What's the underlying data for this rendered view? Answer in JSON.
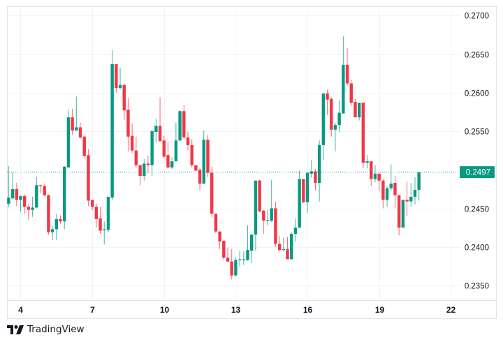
{
  "brand": {
    "name": "TradingView"
  },
  "colors": {
    "up": "#089981",
    "down": "#F23645",
    "grid": "#F0F3FA",
    "text": "#131722"
  },
  "chart_data": {
    "type": "candlestick",
    "title": "",
    "xlabel": "",
    "ylabel": "",
    "x_unit": "day of month",
    "x_start": 3.5,
    "x_step": 0.16667,
    "xlim": [
      3.43,
      22.43
    ],
    "ylim": [
      0.2331,
      0.2712
    ],
    "grid": true,
    "x_ticks": [
      4,
      7,
      10,
      13,
      16,
      19,
      22
    ],
    "x_tick_labels": [
      "4",
      "7",
      "10",
      "13",
      "16",
      "19",
      "22"
    ],
    "y_ticks": [
      0.27,
      0.265,
      0.26,
      0.255,
      0.245,
      0.24,
      0.235
    ],
    "y_tick_labels": [
      "0.2700",
      "0.2650",
      "0.2600",
      "0.2550",
      "0.2450",
      "0.2400",
      "0.2350"
    ],
    "last_price": 0.2497,
    "last_price_label": "0.2497",
    "ohlc_fields": [
      "open",
      "high",
      "low",
      "close"
    ],
    "candles": [
      [
        0.2456,
        0.2505,
        0.2452,
        0.2464
      ],
      [
        0.2463,
        0.2497,
        0.2461,
        0.2475
      ],
      [
        0.2475,
        0.2483,
        0.2453,
        0.2461
      ],
      [
        0.2461,
        0.2466,
        0.2446,
        0.2466
      ],
      [
        0.2466,
        0.2468,
        0.2443,
        0.2452
      ],
      [
        0.2452,
        0.2456,
        0.2435,
        0.2448
      ],
      [
        0.2448,
        0.2465,
        0.2439,
        0.2451
      ],
      [
        0.2451,
        0.2491,
        0.245,
        0.248
      ],
      [
        0.248,
        0.2481,
        0.247,
        0.2479
      ],
      [
        0.2479,
        0.2481,
        0.2466,
        0.2467
      ],
      [
        0.2467,
        0.2468,
        0.2416,
        0.2419
      ],
      [
        0.2419,
        0.2427,
        0.2409,
        0.2423
      ],
      [
        0.2423,
        0.2443,
        0.2409,
        0.2436
      ],
      [
        0.2436,
        0.2441,
        0.243,
        0.2433
      ],
      [
        0.2433,
        0.2505,
        0.2423,
        0.2504
      ],
      [
        0.2503,
        0.2578,
        0.2503,
        0.2568
      ],
      [
        0.2568,
        0.2579,
        0.2545,
        0.2551
      ],
      [
        0.2551,
        0.2595,
        0.2551,
        0.2555
      ],
      [
        0.2555,
        0.2561,
        0.254,
        0.2542
      ],
      [
        0.2543,
        0.2544,
        0.2515,
        0.2518
      ],
      [
        0.2519,
        0.2527,
        0.2453,
        0.246
      ],
      [
        0.2461,
        0.2461,
        0.2448,
        0.2452
      ],
      [
        0.2452,
        0.2456,
        0.2425,
        0.2436
      ],
      [
        0.2437,
        0.2452,
        0.2417,
        0.2421
      ],
      [
        0.2422,
        0.2433,
        0.2403,
        0.2423
      ],
      [
        0.2422,
        0.2465,
        0.2419,
        0.2465
      ],
      [
        0.2464,
        0.2655,
        0.2461,
        0.2637
      ],
      [
        0.2637,
        0.2637,
        0.26,
        0.2606
      ],
      [
        0.2606,
        0.2632,
        0.2604,
        0.261
      ],
      [
        0.261,
        0.2612,
        0.2565,
        0.2577
      ],
      [
        0.2578,
        0.2593,
        0.2524,
        0.2543
      ],
      [
        0.2544,
        0.256,
        0.2522,
        0.2525
      ],
      [
        0.2525,
        0.2543,
        0.2503,
        0.2506
      ],
      [
        0.2506,
        0.2506,
        0.248,
        0.2492
      ],
      [
        0.2492,
        0.2514,
        0.2486,
        0.2508
      ],
      [
        0.2508,
        0.2518,
        0.2496,
        0.2506
      ],
      [
        0.2506,
        0.2552,
        0.2492,
        0.255
      ],
      [
        0.2549,
        0.2566,
        0.2535,
        0.2557
      ],
      [
        0.2557,
        0.2594,
        0.2537,
        0.2537
      ],
      [
        0.2538,
        0.2544,
        0.2515,
        0.2517
      ],
      [
        0.2519,
        0.2537,
        0.2502,
        0.2503
      ],
      [
        0.2503,
        0.2516,
        0.2501,
        0.2511
      ],
      [
        0.2511,
        0.2561,
        0.2511,
        0.2538
      ],
      [
        0.2538,
        0.2577,
        0.2537,
        0.2576
      ],
      [
        0.2576,
        0.2584,
        0.254,
        0.2542
      ],
      [
        0.2542,
        0.2549,
        0.2525,
        0.2532
      ],
      [
        0.2532,
        0.254,
        0.2503,
        0.2506
      ],
      [
        0.2506,
        0.2506,
        0.2497,
        0.2499
      ],
      [
        0.25,
        0.2503,
        0.2473,
        0.2482
      ],
      [
        0.2482,
        0.2551,
        0.2482,
        0.2539
      ],
      [
        0.2539,
        0.2545,
        0.2491,
        0.2496
      ],
      [
        0.2496,
        0.2504,
        0.2438,
        0.2443
      ],
      [
        0.2443,
        0.2443,
        0.2418,
        0.242
      ],
      [
        0.242,
        0.242,
        0.2397,
        0.2407
      ],
      [
        0.2408,
        0.2408,
        0.2383,
        0.2386
      ],
      [
        0.2386,
        0.2399,
        0.238,
        0.2381
      ],
      [
        0.2381,
        0.2397,
        0.2358,
        0.2363
      ],
      [
        0.2363,
        0.2386,
        0.2362,
        0.2383
      ],
      [
        0.2383,
        0.2395,
        0.2375,
        0.2384
      ],
      [
        0.2383,
        0.2394,
        0.2377,
        0.2384
      ],
      [
        0.2383,
        0.2428,
        0.2382,
        0.2396
      ],
      [
        0.2395,
        0.2416,
        0.2379,
        0.2416
      ],
      [
        0.2416,
        0.2486,
        0.2395,
        0.2486
      ],
      [
        0.2486,
        0.2487,
        0.2445,
        0.2446
      ],
      [
        0.2447,
        0.2448,
        0.2417,
        0.2434
      ],
      [
        0.2434,
        0.2448,
        0.2428,
        0.2435
      ],
      [
        0.2434,
        0.2487,
        0.2432,
        0.245
      ],
      [
        0.245,
        0.2459,
        0.24,
        0.2404
      ],
      [
        0.2404,
        0.2414,
        0.2394,
        0.2396
      ],
      [
        0.2396,
        0.2412,
        0.2394,
        0.2397
      ],
      [
        0.2397,
        0.2413,
        0.2384,
        0.2384
      ],
      [
        0.2384,
        0.2419,
        0.2384,
        0.2417
      ],
      [
        0.2417,
        0.2437,
        0.2407,
        0.2425
      ],
      [
        0.2425,
        0.2499,
        0.2424,
        0.2488
      ],
      [
        0.2488,
        0.2488,
        0.2457,
        0.2458
      ],
      [
        0.2458,
        0.2497,
        0.2444,
        0.2496
      ],
      [
        0.2495,
        0.2513,
        0.249,
        0.2498
      ],
      [
        0.2498,
        0.2501,
        0.2473,
        0.2483
      ],
      [
        0.2483,
        0.2538,
        0.2459,
        0.2532
      ],
      [
        0.2532,
        0.2599,
        0.2513,
        0.2599
      ],
      [
        0.2599,
        0.2604,
        0.2571,
        0.2591
      ],
      [
        0.2592,
        0.2594,
        0.2543,
        0.2552
      ],
      [
        0.2552,
        0.2561,
        0.2524,
        0.2558
      ],
      [
        0.2558,
        0.2591,
        0.2549,
        0.2574
      ],
      [
        0.2573,
        0.2673,
        0.2573,
        0.2636
      ],
      [
        0.2636,
        0.2658,
        0.2609,
        0.2612
      ],
      [
        0.2612,
        0.2617,
        0.2583,
        0.2587
      ],
      [
        0.2588,
        0.2592,
        0.2568,
        0.2568
      ],
      [
        0.2568,
        0.2587,
        0.2564,
        0.2587
      ],
      [
        0.2587,
        0.2587,
        0.2502,
        0.2509
      ],
      [
        0.2509,
        0.2519,
        0.2502,
        0.2511
      ],
      [
        0.2511,
        0.2511,
        0.2479,
        0.2488
      ],
      [
        0.2488,
        0.2506,
        0.2484,
        0.2495
      ],
      [
        0.2495,
        0.2495,
        0.2473,
        0.2486
      ],
      [
        0.2486,
        0.2488,
        0.245,
        0.2461
      ],
      [
        0.2461,
        0.2479,
        0.2452,
        0.2476
      ],
      [
        0.2476,
        0.2507,
        0.2473,
        0.2482
      ],
      [
        0.2483,
        0.2492,
        0.245,
        0.2467
      ],
      [
        0.2467,
        0.2468,
        0.2415,
        0.2425
      ],
      [
        0.2425,
        0.2461,
        0.2425,
        0.2461
      ],
      [
        0.2461,
        0.2485,
        0.244,
        0.2459
      ],
      [
        0.2459,
        0.2483,
        0.2452,
        0.2465
      ],
      [
        0.2465,
        0.249,
        0.2455,
        0.2474
      ],
      [
        0.2474,
        0.2497,
        0.246,
        0.2497
      ]
    ]
  }
}
